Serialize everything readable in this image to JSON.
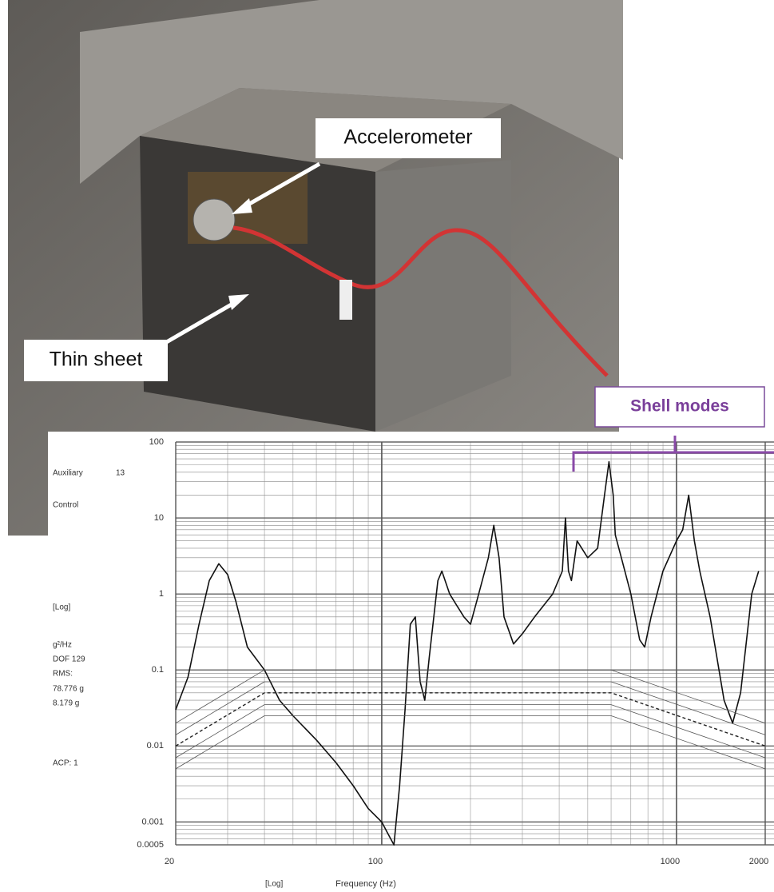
{
  "photo": {
    "labels": [
      "Accelerometer",
      "Thin sheet"
    ]
  },
  "chart_data": {
    "type": "line",
    "log_x": true,
    "log_y": true,
    "grid": true,
    "xlabel": "Frequency (Hz)",
    "annotations": [
      "Shell modes",
      "Auxiliary",
      "13",
      "Control",
      "[Log]",
      "g²/Hz",
      "DOF 129",
      "RMS:",
      "78.776 g",
      "8.179 g",
      "ACP: 1",
      "[Log]"
    ],
    "xlim": [
      20,
      2000
    ],
    "xticks": [
      20,
      100,
      1000,
      2000
    ],
    "ylim": [
      0.0005,
      100
    ],
    "yticks": [
      100,
      10,
      1,
      0.1,
      0.01,
      0.001,
      0.0005
    ],
    "series": [
      {
        "color": "#111111",
        "dash": false,
        "width": 1.6,
        "x": [
          20,
          22,
          24,
          26,
          28,
          30,
          32,
          35,
          40,
          45,
          50,
          60,
          70,
          80,
          90,
          100,
          105,
          110,
          115,
          120,
          125,
          130,
          135,
          140,
          145,
          155,
          160,
          170,
          180,
          190,
          200,
          210,
          230,
          240,
          250,
          260,
          280,
          300,
          330,
          380,
          410,
          420,
          430,
          440,
          460,
          500,
          540,
          570,
          590,
          610,
          620,
          650,
          700,
          750,
          780,
          820,
          900,
          1000,
          1050,
          1100,
          1150,
          1200,
          1300,
          1450,
          1550,
          1650,
          1800,
          1900
        ],
        "values": [
          0.03,
          0.08,
          0.4,
          1.5,
          2.5,
          1.8,
          0.8,
          0.2,
          0.1,
          0.04,
          0.025,
          0.012,
          0.006,
          0.003,
          0.0015,
          0.001,
          0.0007,
          0.0005,
          0.003,
          0.03,
          0.4,
          0.5,
          0.07,
          0.04,
          0.15,
          1.5,
          2,
          1,
          0.7,
          0.5,
          0.4,
          0.8,
          3,
          8,
          3,
          0.5,
          0.22,
          0.3,
          0.5,
          1,
          2,
          10,
          2,
          1.5,
          5,
          3,
          4,
          20,
          55,
          20,
          6,
          3,
          1,
          0.25,
          0.2,
          0.5,
          2,
          5,
          7,
          20,
          5,
          2,
          0.5,
          0.04,
          0.02,
          0.05,
          1,
          2
        ]
      },
      {
        "color": "#222222",
        "dash": true,
        "width": 1.4,
        "x": [
          20,
          40,
          600,
          2000
        ],
        "values": [
          0.01,
          0.05,
          0.05,
          0.01
        ]
      },
      {
        "color": "#555555",
        "dash": false,
        "width": 0.8,
        "x": [
          20,
          40,
          600,
          2000
        ],
        "values": [
          0.02,
          0.1,
          0.1,
          0.02
        ]
      },
      {
        "color": "#555555",
        "dash": false,
        "width": 0.8,
        "x": [
          20,
          40,
          600,
          2000
        ],
        "values": [
          0.014,
          0.07,
          0.07,
          0.014
        ]
      },
      {
        "color": "#555555",
        "dash": false,
        "width": 0.8,
        "x": [
          20,
          40,
          600,
          2000
        ],
        "values": [
          0.007,
          0.035,
          0.035,
          0.007
        ]
      },
      {
        "color": "#555555",
        "dash": false,
        "width": 0.8,
        "x": [
          20,
          40,
          600,
          2000
        ],
        "values": [
          0.005,
          0.025,
          0.025,
          0.005
        ]
      }
    ]
  }
}
